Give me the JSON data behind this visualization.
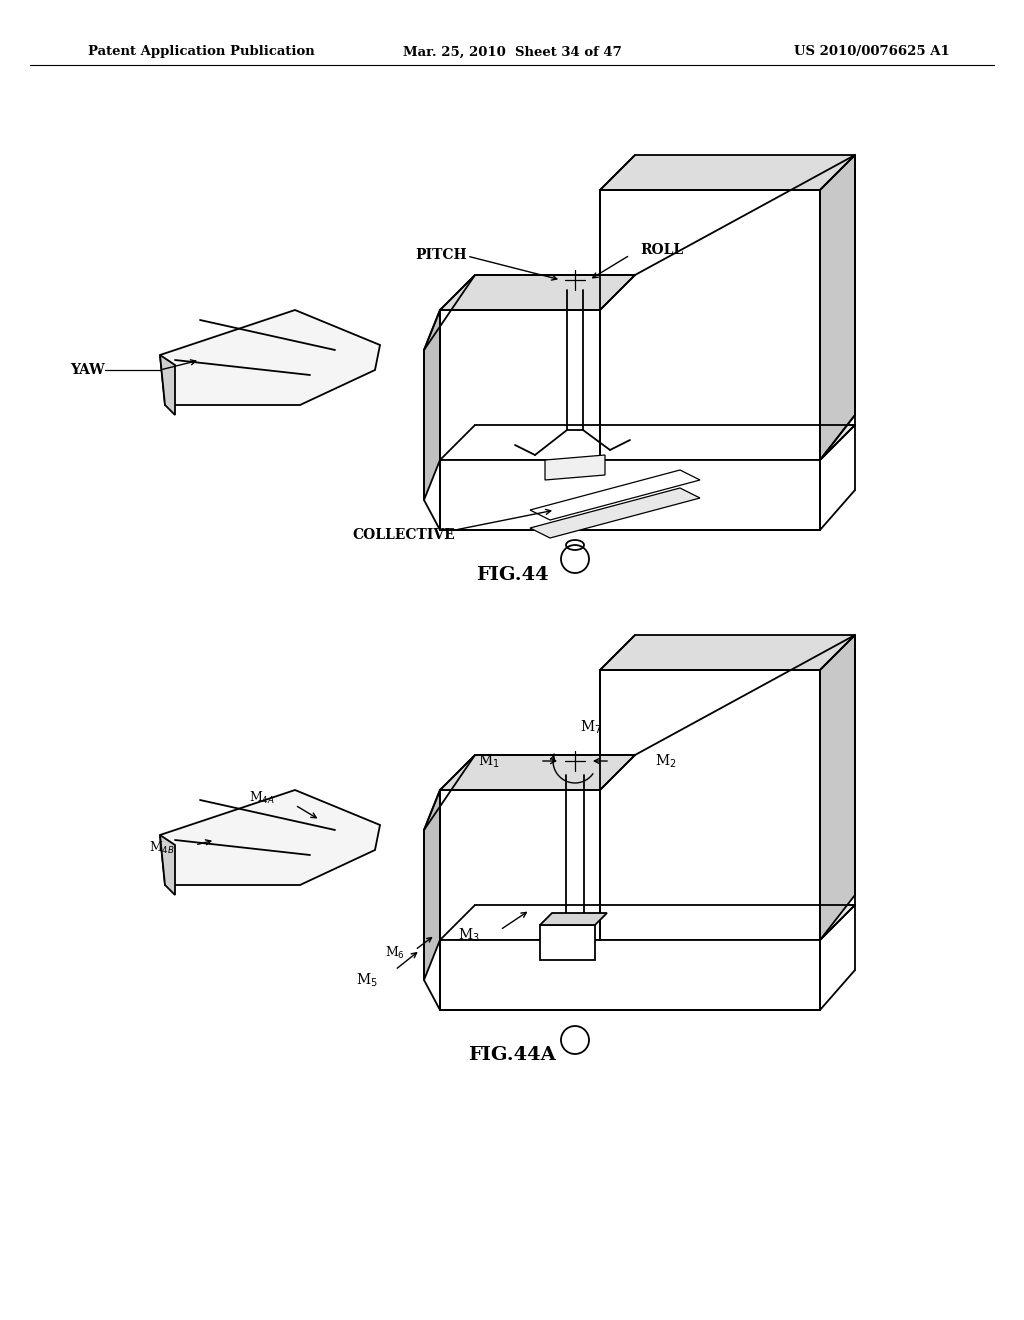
{
  "background_color": "#ffffff",
  "line_color": "#000000",
  "header_left": "Patent Application Publication",
  "header_center": "Mar. 25, 2010  Sheet 34 of 47",
  "header_right": "US 2010/0076625 A1",
  "fig44_caption": "FIG.44",
  "fig44a_caption": "FIG.44A"
}
